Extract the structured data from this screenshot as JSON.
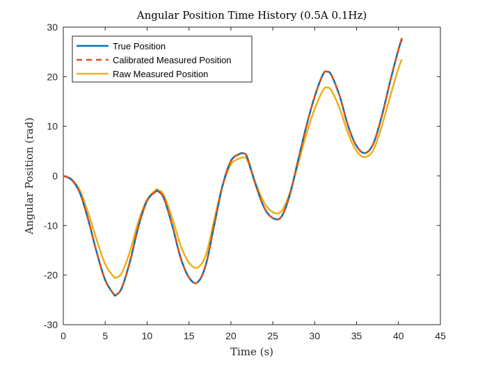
{
  "chart_data": {
    "type": "line",
    "title": "Angular Position Time History (0.5A 0.1Hz)",
    "xlabel": "Time (s)",
    "ylabel": "Angular Position (rad)",
    "xlim": [
      0,
      45
    ],
    "ylim": [
      -30,
      30
    ],
    "xticks": [
      0,
      5,
      10,
      15,
      20,
      25,
      30,
      35,
      40,
      45
    ],
    "yticks": [
      -30,
      -20,
      -10,
      0,
      10,
      20,
      30
    ],
    "grid": false,
    "legend_position": "top-left",
    "series": [
      {
        "name": "True Position",
        "color": "#0072BD",
        "style": "solid",
        "x": [
          0,
          1,
          2,
          3,
          4,
          5,
          6,
          6.3,
          7,
          8,
          9,
          10,
          11,
          11.3,
          12,
          13,
          14,
          15,
          16,
          17,
          18,
          19,
          20,
          21,
          21.6,
          22,
          23,
          24,
          25,
          26,
          27,
          28,
          29,
          30,
          31,
          31.5,
          32,
          33,
          34,
          35,
          36,
          37,
          38,
          39,
          40,
          40.4
        ],
        "y": [
          0,
          -0.8,
          -3.5,
          -9,
          -15.5,
          -21,
          -23.8,
          -24,
          -22.5,
          -17,
          -10,
          -5,
          -3.2,
          -3.1,
          -4.5,
          -10,
          -16.5,
          -20.5,
          -21.5,
          -18,
          -10,
          -2,
          3,
          4.4,
          4.5,
          3.5,
          -2,
          -6.5,
          -8.5,
          -8.3,
          -4,
          3,
          10,
          16,
          20.5,
          21,
          20.3,
          16,
          10,
          6,
          4.6,
          6.5,
          12,
          19,
          25.5,
          27.5
        ]
      },
      {
        "name": "Calibrated Measured Position",
        "color": "#D95319",
        "style": "dashed",
        "x": [
          0,
          1,
          2,
          3,
          4,
          5,
          6,
          6.3,
          7,
          8,
          9,
          10,
          11,
          11.3,
          12,
          13,
          14,
          15,
          16,
          17,
          18,
          19,
          20,
          21,
          21.6,
          22,
          23,
          24,
          25,
          26,
          27,
          28,
          29,
          30,
          31,
          31.5,
          32,
          33,
          34,
          35,
          36,
          37,
          38,
          39,
          40,
          40.4
        ],
        "y": [
          0,
          -0.8,
          -3.5,
          -9,
          -15.5,
          -21,
          -23.8,
          -24,
          -22.5,
          -17,
          -10,
          -5,
          -3.2,
          -3.1,
          -4.5,
          -10,
          -16.5,
          -20.5,
          -21.5,
          -18,
          -10,
          -2,
          3,
          4.4,
          4.5,
          3.5,
          -2,
          -6.5,
          -8.5,
          -8.3,
          -4,
          3,
          10,
          16,
          20.5,
          21,
          20.3,
          16,
          10,
          6,
          4.6,
          6.5,
          12,
          19,
          25.5,
          27.8
        ]
      },
      {
        "name": "Raw Measured Position",
        "color": "#EDB120",
        "style": "solid",
        "x": [
          0,
          1,
          2,
          3,
          4,
          5,
          6,
          6.3,
          7,
          8,
          9,
          10,
          11,
          11.3,
          12,
          13,
          14,
          15,
          16,
          17,
          18,
          19,
          20,
          21,
          21.6,
          22,
          23,
          24,
          25,
          26,
          27,
          28,
          29,
          30,
          31,
          31.5,
          32,
          33,
          34,
          35,
          36,
          37,
          38,
          39,
          40,
          40.4
        ],
        "y": [
          0,
          -0.7,
          -3,
          -7.6,
          -13,
          -17.8,
          -20.3,
          -20.5,
          -19.5,
          -15,
          -9,
          -4.8,
          -2.9,
          -2.8,
          -3.9,
          -8.5,
          -14,
          -17.5,
          -18.5,
          -16,
          -9,
          -2,
          2.3,
          3.5,
          3.7,
          3,
          -1.7,
          -5.5,
          -7.3,
          -7.2,
          -3.6,
          2.3,
          8.4,
          13.5,
          17.3,
          17.8,
          17.2,
          13.5,
          8.5,
          5,
          3.8,
          5.2,
          10,
          16,
          21.7,
          23.5
        ]
      }
    ]
  }
}
